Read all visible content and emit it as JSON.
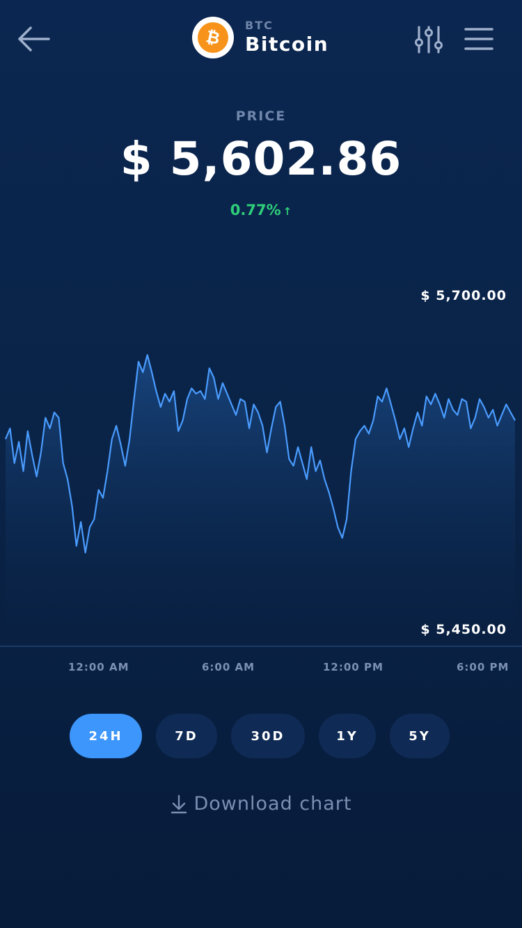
{
  "header": {
    "coin_ticker": "BTC",
    "coin_name": "Bitcoin",
    "coin_symbol": "₿"
  },
  "price": {
    "label": "PRICE",
    "value": "$ 5,602.86",
    "change": "0.77%",
    "change_arrow": "↑"
  },
  "colors": {
    "accent": "#3d96fb",
    "positive": "#2ecf7a",
    "bitcoin": "#f7931a",
    "line": "#4a9cff"
  },
  "chart_data": {
    "type": "line",
    "xlabel": "",
    "ylabel": "",
    "ylim": [
      5450,
      5700
    ],
    "y_ticks": [
      "$ 5,700.00",
      "$ 5,450.00"
    ],
    "x_ticks": [
      "12:00 AM",
      "6:00 PM",
      "12:00 PM",
      "6:00 AM"
    ],
    "x_ticks_ordered": [
      "12:00 AM",
      "6:00 AM",
      "12:00 PM",
      "6:00 PM"
    ],
    "series": [
      {
        "values": [
          5590,
          5598,
          5572,
          5588,
          5566,
          5596,
          5578,
          5562,
          5580,
          5606,
          5598,
          5610,
          5606,
          5572,
          5560,
          5540,
          5510,
          5528,
          5505,
          5524,
          5530,
          5552,
          5546,
          5566,
          5590,
          5600,
          5586,
          5570,
          5590,
          5620,
          5648,
          5640,
          5653,
          5640,
          5626,
          5614,
          5624,
          5618,
          5626,
          5596,
          5604,
          5620,
          5628,
          5624,
          5626,
          5620,
          5643,
          5636,
          5620,
          5632,
          5624,
          5616,
          5608,
          5620,
          5618,
          5598,
          5616,
          5610,
          5600,
          5580,
          5598,
          5614,
          5618,
          5600,
          5575,
          5570,
          5584,
          5572,
          5560,
          5584,
          5566,
          5574,
          5560,
          5550,
          5538,
          5524,
          5516,
          5530,
          5566,
          5590,
          5596,
          5600,
          5594,
          5604,
          5622,
          5618,
          5628,
          5616,
          5604,
          5590,
          5598,
          5584,
          5598,
          5610,
          5600,
          5622,
          5616,
          5624,
          5616,
          5606,
          5620,
          5612,
          5608,
          5620,
          5618,
          5598,
          5606,
          5620,
          5614,
          5606,
          5612,
          5600,
          5608,
          5616,
          5610,
          5604
        ]
      }
    ]
  },
  "periods": [
    {
      "label": "24H",
      "active": true
    },
    {
      "label": "7D",
      "active": false
    },
    {
      "label": "30D",
      "active": false
    },
    {
      "label": "1Y",
      "active": false
    },
    {
      "label": "5Y",
      "active": false
    }
  ],
  "download": {
    "label": "Download chart"
  }
}
